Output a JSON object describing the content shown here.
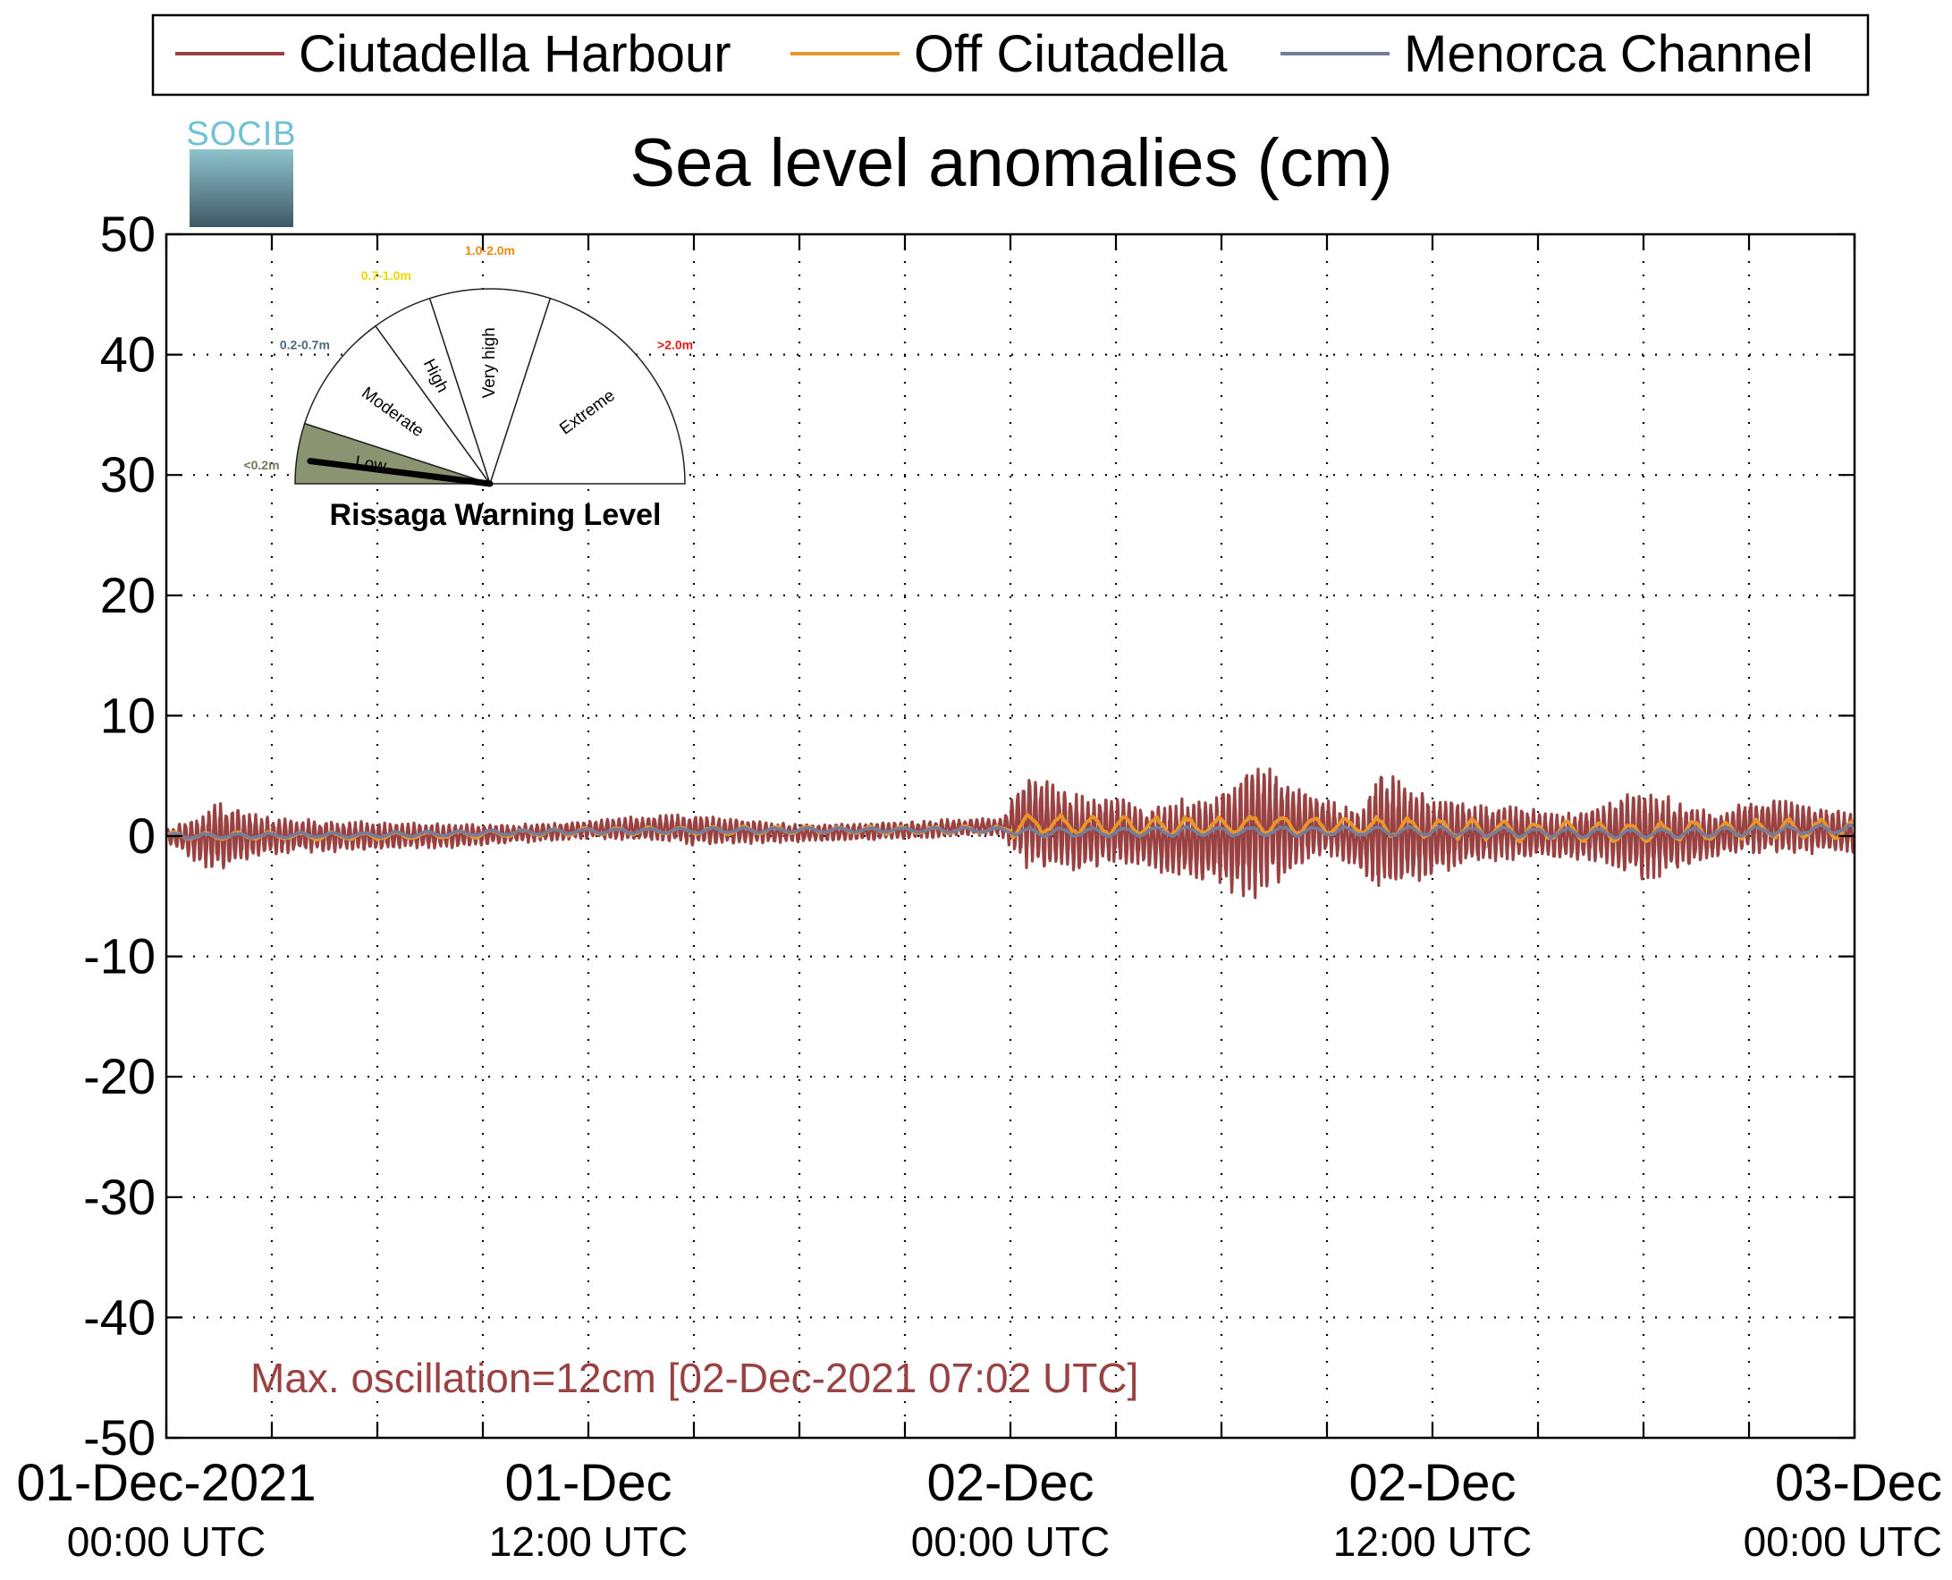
{
  "logo": {
    "text": "SOCIB"
  },
  "chart_data": {
    "type": "line",
    "title": "Sea level anomalies (cm)",
    "xlabel": "",
    "ylabel": "",
    "ylim": [
      -50,
      50
    ],
    "yticks": [
      50,
      40,
      30,
      20,
      10,
      0,
      -10,
      -20,
      -30,
      -40,
      -50
    ],
    "xlim": [
      "2021-12-01T00:00",
      "2021-12-03T00:00"
    ],
    "x_minor_tick_hours": 3,
    "grid": true,
    "legend_position": "top",
    "x_tick_labels": [
      {
        "date_label": "01-Dec-2021",
        "time_label": "00:00 UTC",
        "x": "2021-12-01T00:00"
      },
      {
        "date_label": "01-Dec",
        "time_label": "12:00 UTC",
        "x": "2021-12-01T12:00"
      },
      {
        "date_label": "02-Dec",
        "time_label": "00:00 UTC",
        "x": "2021-12-02T00:00"
      },
      {
        "date_label": "02-Dec",
        "time_label": "12:00 UTC",
        "x": "2021-12-02T12:00"
      },
      {
        "date_label": "03-Dec",
        "time_label": "00:00 UTC",
        "x": "2021-12-03T00:00"
      }
    ],
    "series": [
      {
        "name": "Ciutadella Harbour",
        "color": "#9a4142",
        "envelope_x": [
          "2021-12-01T00:00",
          "2021-12-01T01:00",
          "2021-12-01T01:30",
          "2021-12-01T03:00",
          "2021-12-01T06:00",
          "2021-12-01T08:00",
          "2021-12-01T10:00",
          "2021-12-01T12:00",
          "2021-12-01T14:00",
          "2021-12-01T15:00",
          "2021-12-01T18:00",
          "2021-12-01T21:00",
          "2021-12-01T23:00",
          "2021-12-01T23:45",
          "2021-12-02T00:30",
          "2021-12-02T02:00",
          "2021-12-02T03:00",
          "2021-12-02T04:00",
          "2021-12-02T05:30",
          "2021-12-02T06:30",
          "2021-12-02T07:00",
          "2021-12-02T08:00",
          "2021-12-02T09:00",
          "2021-12-02T10:00",
          "2021-12-02T10:30",
          "2021-12-02T11:00",
          "2021-12-02T12:00",
          "2021-12-02T13:00",
          "2021-12-02T14:00",
          "2021-12-02T16:00",
          "2021-12-02T17:00",
          "2021-12-02T18:00",
          "2021-12-02T20:00",
          "2021-12-02T21:00",
          "2021-12-02T22:00",
          "2021-12-03T00:00"
        ],
        "envelope_max": [
          0.5,
          2.0,
          3.0,
          1.5,
          1.2,
          1.0,
          1.0,
          1.3,
          1.8,
          1.8,
          1.0,
          1.2,
          1.5,
          1.5,
          5.5,
          3.5,
          3.5,
          2.5,
          3.5,
          5.0,
          7.0,
          4.5,
          3.0,
          2.0,
          6.0,
          5.0,
          3.5,
          3.0,
          2.5,
          2.0,
          3.0,
          4.0,
          2.0,
          3.0,
          3.0,
          2.0
        ],
        "envelope_min": [
          -0.5,
          -2.5,
          -3.0,
          -1.5,
          -1.2,
          -1.0,
          -0.6,
          -0.3,
          -0.5,
          -0.8,
          -0.5,
          -0.3,
          0.0,
          0.0,
          -3.0,
          -3.0,
          -2.5,
          -3.0,
          -4.0,
          -5.0,
          -5.5,
          -3.0,
          -1.5,
          -3.0,
          -5.0,
          -4.5,
          -3.5,
          -2.5,
          -2.0,
          -2.0,
          -2.5,
          -4.0,
          -2.0,
          -1.5,
          -1.5,
          -1.5
        ],
        "period_minutes": 10
      },
      {
        "name": "Off Ciutadella",
        "color": "#e8962a",
        "x": [
          "2021-12-01T00:00",
          "2021-12-01T06:00",
          "2021-12-01T12:00",
          "2021-12-01T18:00",
          "2021-12-01T23:45",
          "2021-12-02T00:30",
          "2021-12-02T03:00",
          "2021-12-02T06:00",
          "2021-12-02T07:00",
          "2021-12-02T10:00",
          "2021-12-02T12:00",
          "2021-12-02T15:00",
          "2021-12-02T18:00",
          "2021-12-02T21:00",
          "2021-12-03T00:00"
        ],
        "y": [
          0.0,
          0.0,
          0.4,
          0.5,
          0.5,
          1.0,
          0.8,
          0.8,
          1.0,
          0.8,
          0.6,
          0.4,
          0.3,
          0.5,
          0.6
        ]
      },
      {
        "name": "Menorca Channel",
        "color": "#757d9c",
        "x": [
          "2021-12-01T00:00",
          "2021-12-01T06:00",
          "2021-12-01T12:00",
          "2021-12-01T18:00",
          "2021-12-01T23:45",
          "2021-12-02T00:30",
          "2021-12-02T06:00",
          "2021-12-02T12:00",
          "2021-12-02T18:00",
          "2021-12-03T00:00"
        ],
        "y": [
          0.0,
          0.1,
          0.4,
          0.5,
          0.5,
          0.3,
          0.4,
          0.4,
          0.2,
          0.6
        ]
      }
    ],
    "annotation": {
      "text": "Max. oscillation=12cm [02-Dec-2021 07:02 UTC]",
      "color": "#9a4142"
    }
  },
  "gauge": {
    "title": "Rissaga Warning Level",
    "current_level": "Low",
    "needle_fraction": 0.04,
    "sectors": [
      {
        "label": "Low",
        "range": "<0.2m",
        "color": "#e0e0e0",
        "range_color": "#6e7a58",
        "active_fill": "#8a9470",
        "start": 0.0,
        "end": 0.1
      },
      {
        "label": "Moderate",
        "range": "0.2-0.7m",
        "color": "#ffffff",
        "range_color": "#4a6a78",
        "start": 0.1,
        "end": 0.3
      },
      {
        "label": "High",
        "range": "0.7-1.0m",
        "color": "#ffffff",
        "range_color": "#f2d600",
        "start": 0.3,
        "end": 0.4
      },
      {
        "label": "Very high",
        "range": "1.0-2.0m",
        "color": "#ffffff",
        "range_color": "#f08a10",
        "start": 0.4,
        "end": 0.6
      },
      {
        "label": "Extreme",
        "range": ">2.0m",
        "color": "#ffffff",
        "range_color": "#e41a1a",
        "start": 0.6,
        "end": 1.0
      }
    ]
  }
}
